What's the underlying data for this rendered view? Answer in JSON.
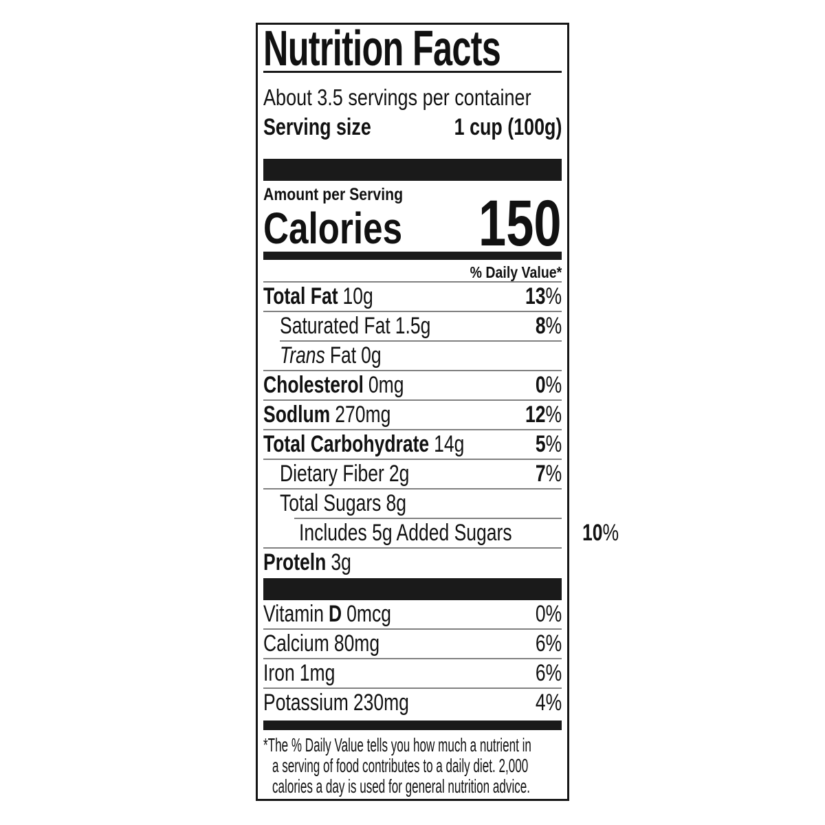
{
  "label": {
    "title": "Nutrition Facts",
    "servings_per_container": "About 3.5 servings per container",
    "serving_size_label": "Serving size",
    "serving_size_value": "1 cup (100g)",
    "amount_per_serving_label": "Amount per Serving",
    "calories_label": "Calories",
    "calories_value": "150",
    "daily_value_header": "% Daily Value*",
    "percent_sign": "%",
    "nutrients": [
      {
        "name": "Total Fat",
        "amount": "10g",
        "daily_value": "13"
      },
      {
        "name": "Saturated Fat",
        "amount": "1.5g",
        "daily_value": "8"
      },
      {
        "name_italic": "Trans",
        "name": "Fat",
        "amount": "0g"
      },
      {
        "name": "Cholesterol",
        "amount": "0mg",
        "daily_value": "0"
      },
      {
        "name": "Sodlum",
        "amount": "270mg",
        "daily_value": "12"
      },
      {
        "name": "Total Carbohydrate",
        "amount": "14g",
        "daily_value": "5"
      },
      {
        "name": "Dietary Fiber",
        "amount": "2g",
        "daily_value": "7"
      },
      {
        "name": "Total Sugars",
        "amount": "8g"
      },
      {
        "name": "Includes 5g Added Sugars",
        "daily_value": "10"
      },
      {
        "name": "Proteln",
        "amount": "3g"
      }
    ],
    "micronutrients": [
      {
        "name": "Vitamin",
        "name_bold": "D",
        "amount": "0mcg",
        "daily_value": "0"
      },
      {
        "name": "Calcium",
        "amount": "80mg",
        "daily_value": "6"
      },
      {
        "name": "Iron",
        "amount": "1mg",
        "daily_value": "6"
      },
      {
        "name": "Potassium",
        "amount": "230mg",
        "daily_value": "4"
      }
    ],
    "footnote_lines": [
      "*The % Daily Value tells you how much a nutrient in",
      "a serving of food contributes to a daily diet. 2,000",
      "calories a day is used for general nutrition advice."
    ],
    "colors": {
      "text": "#111111",
      "bars": "#1a1a1a",
      "hairline": "#7f7f7f",
      "background": "#ffffff"
    }
  }
}
